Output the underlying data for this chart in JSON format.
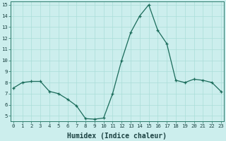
{
  "x": [
    0,
    1,
    2,
    3,
    4,
    5,
    6,
    7,
    8,
    9,
    10,
    11,
    12,
    13,
    14,
    15,
    16,
    17,
    18,
    19,
    20,
    21,
    22,
    23
  ],
  "y": [
    7.5,
    8.0,
    8.1,
    8.1,
    7.2,
    7.0,
    6.5,
    5.9,
    4.75,
    4.7,
    4.8,
    7.0,
    10.0,
    12.5,
    14.0,
    15.0,
    12.7,
    11.5,
    8.2,
    8.0,
    8.3,
    8.2,
    8.0,
    7.2
  ],
  "xlim": [
    -0.3,
    23.3
  ],
  "ylim": [
    4.5,
    15.3
  ],
  "yticks": [
    5,
    6,
    7,
    8,
    9,
    10,
    11,
    12,
    13,
    14,
    15
  ],
  "xticks": [
    0,
    1,
    2,
    3,
    4,
    5,
    6,
    7,
    8,
    9,
    10,
    11,
    12,
    13,
    14,
    15,
    16,
    17,
    18,
    19,
    20,
    21,
    22,
    23
  ],
  "xlabel": "Humidex (Indice chaleur)",
  "line_color": "#1a6b5a",
  "marker": "+",
  "bg_color": "#cceeed",
  "grid_color": "#aaddd8",
  "tick_label_fontsize": 5.2,
  "xlabel_fontsize": 7.0
}
